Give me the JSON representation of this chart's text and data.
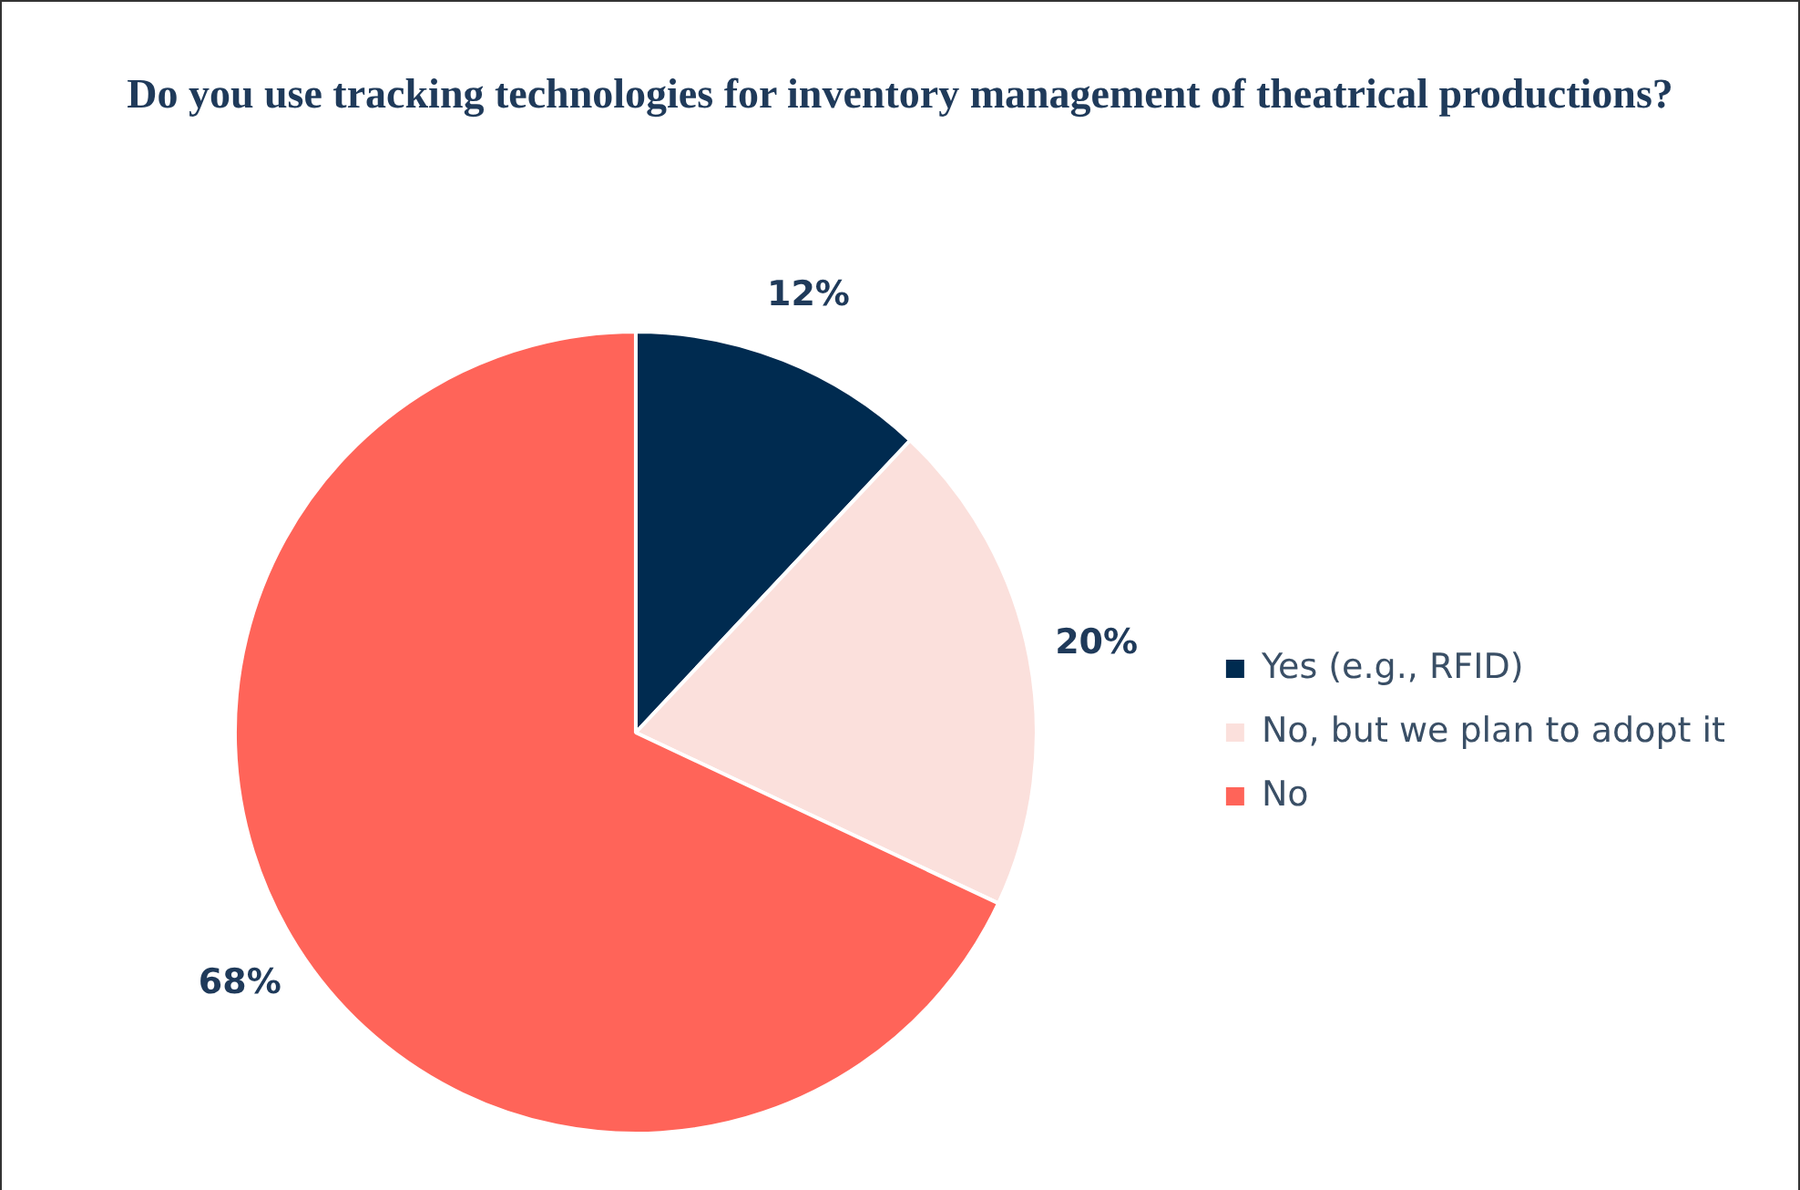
{
  "chart_data": {
    "type": "pie",
    "title": "Do you use tracking technologies  for inventory management of theatrical productions?",
    "categories": [
      "Yes (e.g., RFID)",
      "No, but we plan to adopt it",
      "No"
    ],
    "values": [
      12,
      20,
      68
    ],
    "value_labels": [
      "12%",
      "20%",
      "68%"
    ],
    "colors": [
      "#002b50",
      "#fbe0dc",
      "#ff6459"
    ],
    "legend": "right"
  }
}
